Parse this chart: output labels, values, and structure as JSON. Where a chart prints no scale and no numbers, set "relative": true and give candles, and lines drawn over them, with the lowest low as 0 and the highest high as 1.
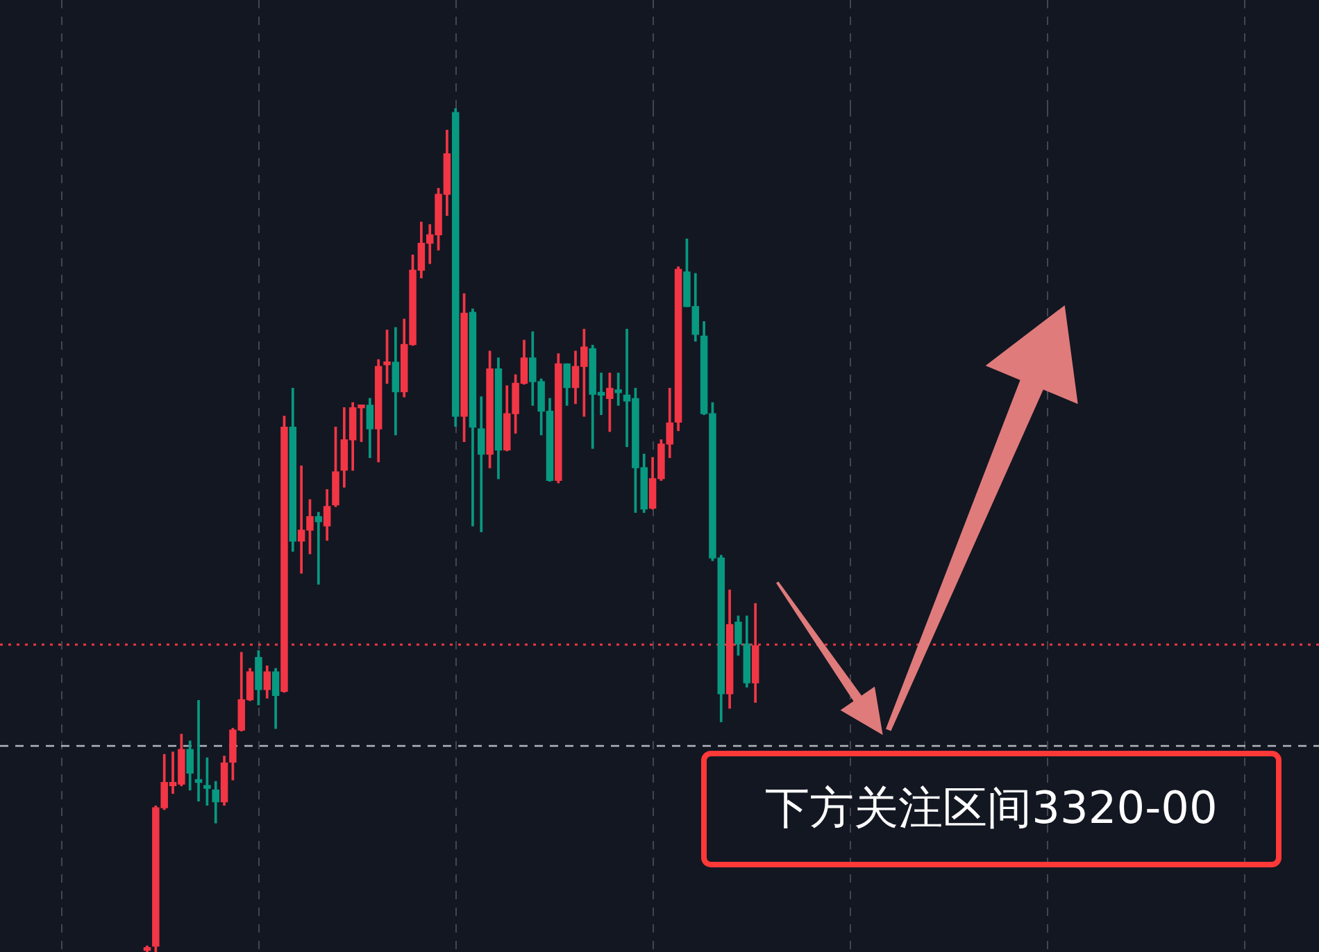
{
  "chart_data": {
    "type": "candlestick",
    "relative": true,
    "categories": [
      null,
      null,
      null,
      null,
      null,
      null,
      null,
      null,
      null,
      null,
      null,
      null,
      null,
      null,
      null,
      null,
      null,
      null,
      null,
      null,
      null,
      null,
      null,
      null,
      null,
      null,
      null,
      null,
      null,
      null,
      null,
      null,
      null,
      null,
      null,
      null,
      null,
      null,
      null,
      null,
      null,
      null,
      null,
      null,
      null,
      null,
      null,
      null,
      null,
      null,
      null,
      null,
      null,
      null,
      null,
      null,
      null,
      null,
      null,
      null,
      null,
      null,
      null,
      null,
      null,
      null,
      null,
      null,
      null,
      null,
      null,
      null
    ],
    "ohlc": [
      [
        0.002,
        0.007,
        0,
        0.005
      ],
      [
        0.007,
        0.173,
        0,
        0.171
      ],
      [
        0.171,
        0.234,
        0.169,
        0.201
      ],
      [
        0.197,
        0.237,
        0.188,
        0.201
      ],
      [
        0.199,
        0.258,
        0.197,
        0.24
      ],
      [
        0.24,
        0.25,
        0.192,
        0.212
      ],
      [
        0.202,
        0.298,
        0.179,
        0.201
      ],
      [
        0.197,
        0.23,
        0.174,
        0.194
      ],
      [
        0.192,
        0.202,
        0.153,
        0.178
      ],
      [
        0.178,
        0.232,
        0.174,
        0.224
      ],
      [
        0.225,
        0.265,
        0.204,
        0.263
      ],
      [
        0.263,
        0.355,
        0.262,
        0.299
      ],
      [
        0.299,
        0.336,
        0.298,
        0.332
      ],
      [
        0.349,
        0.357,
        0.293,
        0.311
      ],
      [
        0.311,
        0.339,
        0.301,
        0.332
      ],
      [
        0.332,
        0.336,
        0.265,
        0.304
      ],
      [
        0.309,
        0.635,
        0.308,
        0.622
      ],
      [
        0.622,
        0.668,
        0.475,
        0.487
      ],
      [
        0.487,
        0.576,
        0.449,
        0.5
      ],
      [
        0.5,
        0.536,
        0.472,
        0.516
      ],
      [
        0.516,
        0.521,
        0.436,
        0.51
      ],
      [
        0.505,
        0.548,
        0.488,
        0.528
      ],
      [
        0.53,
        0.622,
        0.528,
        0.569
      ],
      [
        0.571,
        0.645,
        0.551,
        0.607
      ],
      [
        0.607,
        0.651,
        0.571,
        0.645
      ],
      [
        0.645,
        0.648,
        0.605,
        0.646
      ],
      [
        0.648,
        0.656,
        0.586,
        0.62
      ],
      [
        0.62,
        0.702,
        0.581,
        0.694
      ],
      [
        0.696,
        0.737,
        0.674,
        0.697
      ],
      [
        0.699,
        0.74,
        0.613,
        0.664
      ],
      [
        0.664,
        0.75,
        0.658,
        0.72
      ],
      [
        0.72,
        0.826,
        0.719,
        0.808
      ],
      [
        0.808,
        0.865,
        0.799,
        0.84
      ],
      [
        0.84,
        0.862,
        0.816,
        0.85
      ],
      [
        0.85,
        0.905,
        0.832,
        0.898
      ],
      [
        0.898,
        0.974,
        0.873,
        0.946
      ],
      [
        0.995,
        1,
        0.623,
        0.635
      ],
      [
        0.635,
        0.78,
        0.605,
        0.757
      ],
      [
        0.758,
        0.762,
        0.505,
        0.622
      ],
      [
        0.62,
        0.658,
        0.498,
        0.59
      ],
      [
        0.59,
        0.712,
        0.574,
        0.691
      ],
      [
        0.691,
        0.704,
        0.561,
        0.595
      ],
      [
        0.595,
        0.671,
        0.594,
        0.638
      ],
      [
        0.638,
        0.684,
        0.615,
        0.674
      ],
      [
        0.674,
        0.725,
        0.673,
        0.704
      ],
      [
        0.704,
        0.735,
        0.648,
        0.676
      ],
      [
        0.676,
        0.679,
        0.613,
        0.641
      ],
      [
        0.641,
        0.656,
        0.558,
        0.559
      ],
      [
        0.559,
        0.709,
        0.556,
        0.697
      ],
      [
        0.697,
        0.697,
        0.648,
        0.669
      ],
      [
        0.669,
        0.712,
        0.65,
        0.694
      ],
      [
        0.694,
        0.738,
        0.635,
        0.717
      ],
      [
        0.715,
        0.719,
        0.597,
        0.661
      ],
      [
        0.661,
        0.686,
        0.637,
        0.66
      ],
      [
        0.656,
        0.686,
        0.617,
        0.668
      ],
      [
        0.666,
        0.686,
        0.648,
        0.663
      ],
      [
        0.66,
        0.738,
        0.599,
        0.653
      ],
      [
        0.656,
        0.668,
        0.521,
        0.574
      ],
      [
        0.574,
        0.59,
        0.521,
        0.525
      ],
      [
        0.526,
        0.586,
        0.525,
        0.561
      ],
      [
        0.561,
        0.607,
        0.559,
        0.602
      ],
      [
        0.602,
        0.668,
        0.586,
        0.627
      ],
      [
        0.628,
        0.812,
        0.618,
        0.809
      ],
      [
        0.806,
        0.845,
        0.765,
        0.765
      ],
      [
        0.765,
        0.804,
        0.724,
        0.732
      ],
      [
        0.73,
        0.747,
        0.637,
        0.638
      ],
      [
        0.638,
        0.651,
        0.464,
        0.467
      ],
      [
        0.467,
        0.47,
        0.273,
        0.306
      ],
      [
        0.306,
        0.429,
        0.289,
        0.388
      ],
      [
        0.391,
        0.398,
        0.352,
        0.365
      ],
      [
        0.365,
        0.398,
        0.314,
        0.319
      ],
      [
        0.319,
        0.413,
        0.296,
        0.363
      ]
    ],
    "colors": [
      "#f23645",
      "#f23645",
      "#f23645",
      "#f23645",
      "#f23645",
      "#089981",
      "#089981",
      "#089981",
      "#089981",
      "#f23645",
      "#f23645",
      "#f23645",
      "#f23645",
      "#089981",
      "#f23645",
      "#089981",
      "#f23645",
      "#089981",
      "#f23645",
      "#f23645",
      "#089981",
      "#f23645",
      "#f23645",
      "#f23645",
      "#f23645",
      "#f23645",
      "#089981",
      "#f23645",
      "#f23645",
      "#089981",
      "#f23645",
      "#f23645",
      "#f23645",
      "#f23645",
      "#f23645",
      "#f23645",
      "#089981",
      "#f23645",
      "#089981",
      "#089981",
      "#f23645",
      "#089981",
      "#f23645",
      "#f23645",
      "#f23645",
      "#089981",
      "#089981",
      "#089981",
      "#f23645",
      "#089981",
      "#f23645",
      "#f23645",
      "#089981",
      "#089981",
      "#f23645",
      "#089981",
      "#089981",
      "#089981",
      "#089981",
      "#f23645",
      "#f23645",
      "#f23645",
      "#f23645",
      "#089981",
      "#089981",
      "#089981",
      "#089981",
      "#089981",
      "#f23645",
      "#089981",
      "#089981",
      "#f23645"
    ],
    "ref_lines": [
      {
        "axis": "y",
        "value": 0.365,
        "color": "#f23645",
        "line_style": "dotted"
      },
      {
        "axis": "y",
        "value": 0.245,
        "color": "#b2b5be",
        "line_style": "dashed"
      }
    ],
    "annotations": [
      "下方关注区间3320-00"
    ],
    "grid": "x",
    "legend": false
  }
}
